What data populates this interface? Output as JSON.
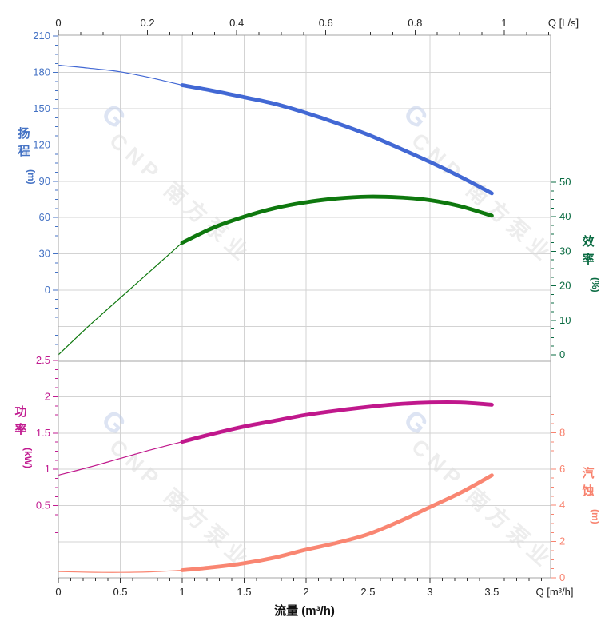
{
  "chart_data": {
    "type": "line",
    "title": "",
    "x_bottom": {
      "axis_title": "流量 (m³/h)",
      "unit_label": "Q [m³/h]",
      "ticks": [
        0,
        0.5,
        1,
        1.5,
        2,
        2.5,
        3,
        3.5
      ],
      "range": [
        0,
        3.975
      ],
      "minor_step": 0.1
    },
    "x_top": {
      "unit_label": "Q [L/s]",
      "ticks": [
        0,
        0.2,
        0.4,
        0.6,
        0.8,
        1
      ],
      "range": [
        0,
        1.104
      ],
      "minor_step": 0.05,
      "lps_to_m3h": 3.6
    },
    "y_head": {
      "axis_title": "扬程",
      "unit": "(m)",
      "ticks": [
        210,
        180,
        150,
        120,
        90,
        60,
        30,
        0
      ],
      "minor_step": 7.5,
      "color": "#4472c4"
    },
    "y_eff": {
      "axis_title": "效率",
      "unit": "(%)",
      "ticks": [
        50,
        40,
        30,
        20,
        10,
        0
      ],
      "minor_step": 2.5,
      "color": "#0a6b42"
    },
    "y_power": {
      "axis_title": "功率",
      "unit": "(kW)",
      "ticks": [
        2.5,
        2,
        1.5,
        1,
        0.5
      ],
      "minor_step": 0.125,
      "color": "#c11b90"
    },
    "y_npsh": {
      "axis_title": "汽蚀",
      "unit": "(m)",
      "ticks": [
        8,
        6,
        4,
        2,
        0
      ],
      "minor_step": 0.5,
      "color": "#f8836f"
    },
    "series": [
      {
        "name": "head",
        "axis": "head",
        "color": "#4268d4",
        "thin_until": 1,
        "q": [
          0,
          0.25,
          0.5,
          0.75,
          1,
          1.25,
          1.5,
          1.75,
          2,
          2.25,
          2.5,
          2.75,
          3,
          3.25,
          3.5
        ],
        "v": [
          186,
          183.5,
          180.5,
          175.5,
          169.5,
          164.8,
          159.5,
          154,
          146.5,
          138,
          128.5,
          117.5,
          106,
          93.5,
          80
        ]
      },
      {
        "name": "efficiency",
        "axis": "eff",
        "color": "#0e780e",
        "thin_until": 1,
        "q": [
          0,
          0.25,
          0.5,
          0.75,
          1,
          1.25,
          1.5,
          1.75,
          2,
          2.25,
          2.5,
          2.75,
          3,
          3.25,
          3.5
        ],
        "v": [
          0,
          8.5,
          16.5,
          24.5,
          32.5,
          36.8,
          40,
          42.5,
          44.2,
          45.3,
          45.8,
          45.6,
          44.8,
          43,
          40.3
        ]
      },
      {
        "name": "power",
        "axis": "power",
        "color": "#c0188c",
        "thin_until": 1,
        "q": [
          0,
          0.25,
          0.5,
          0.75,
          1,
          1.25,
          1.5,
          1.75,
          2,
          2.25,
          2.5,
          2.75,
          3,
          3.25,
          3.5
        ],
        "v": [
          0.92,
          1.03,
          1.15,
          1.27,
          1.38,
          1.49,
          1.59,
          1.67,
          1.75,
          1.81,
          1.86,
          1.9,
          1.92,
          1.92,
          1.89
        ]
      },
      {
        "name": "npsh",
        "axis": "npsh",
        "color": "#f98672",
        "thin_until": 1,
        "q": [
          0,
          0.25,
          0.5,
          0.75,
          1,
          1.25,
          1.5,
          1.75,
          2,
          2.25,
          2.5,
          2.75,
          3,
          3.25,
          3.5
        ],
        "v": [
          0.35,
          0.31,
          0.3,
          0.33,
          0.42,
          0.58,
          0.8,
          1.12,
          1.55,
          1.93,
          2.4,
          3.1,
          3.9,
          4.7,
          5.65
        ]
      }
    ],
    "layout": {
      "grid": true,
      "thick_range_note": "curves drawn thin for Q<1 m³/h, thick for 1..3.5 m³/h"
    },
    "watermark": {
      "logo": "G",
      "text": "CNP 南方泵业"
    }
  }
}
